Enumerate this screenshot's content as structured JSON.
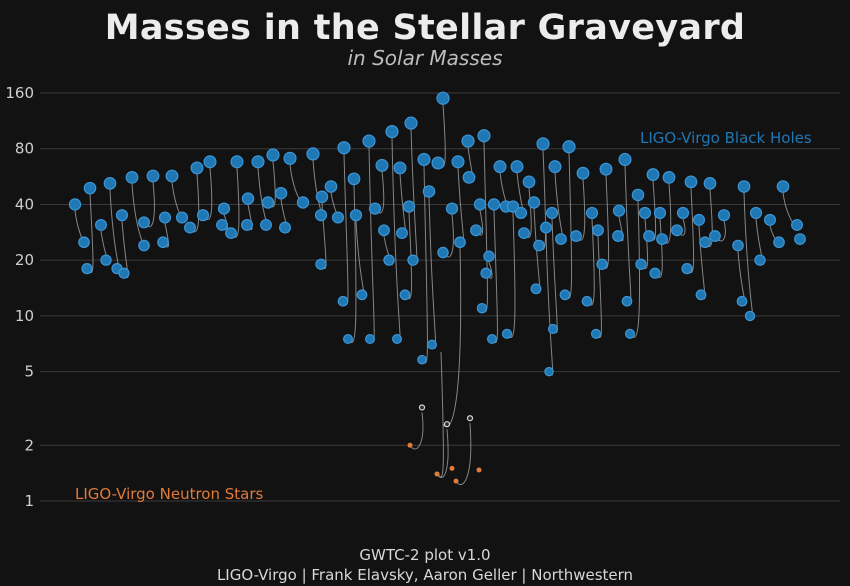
{
  "title": "Masses in the Stellar Graveyard",
  "subtitle": "in Solar Masses",
  "footer": {
    "line1": "GWTC-2 plot v1.0",
    "line2": "LIGO-Virgo | Frank Elavsky, Aaron Geller | Northwestern"
  },
  "colors": {
    "background": "#121212",
    "black_hole": "#1f77b4",
    "neutron_star": "#e07b39",
    "uncertain": "#d9d9d9",
    "merger_line": "#9a9a9a"
  },
  "chart_data": {
    "type": "scatter",
    "title": "Masses in the Stellar Graveyard",
    "subtitle": "in Solar Masses",
    "yscale": "log",
    "ylim": [
      1,
      170
    ],
    "yticks": [
      1,
      2,
      5,
      10,
      20,
      40,
      80,
      160
    ],
    "grid": true,
    "series": [
      {
        "name": "LIGO-Virgo Black Holes",
        "color": "#1f77b4"
      },
      {
        "name": "LIGO-Virgo Neutron Stars",
        "color": "#e07b39"
      }
    ],
    "mergers": [
      {
        "x": 1,
        "m1": 31,
        "m2": 25,
        "final": 53,
        "type": "BH"
      },
      {
        "x": 2,
        "m1": 35,
        "m2": 30,
        "final": 62,
        "type": "BH"
      },
      {
        "x": 3,
        "m1": 14,
        "m2": 8,
        "final": 21,
        "type": "BH"
      },
      {
        "x": 4,
        "m1": 23,
        "m2": 14,
        "final": 36,
        "type": "BH"
      },
      {
        "x": 5,
        "m1": 36,
        "m2": 24,
        "final": 57,
        "type": "BH"
      },
      {
        "x": 6,
        "m1": 29,
        "m2": 21,
        "final": 48,
        "type": "BH"
      },
      {
        "x": 7,
        "m1": 40,
        "m2": 30,
        "final": 68,
        "type": "BH"
      },
      {
        "x": 8,
        "m1": 35,
        "m2": 25,
        "final": 57,
        "type": "BH"
      },
      {
        "x": 9,
        "m1": 42,
        "m2": 31,
        "final": 71,
        "type": "BH"
      },
      {
        "x": 10,
        "m1": 30,
        "m2": 24,
        "final": 52,
        "type": "BH"
      },
      {
        "x": 11,
        "m1": 44,
        "m2": 33,
        "final": 75,
        "type": "BH"
      },
      {
        "x": 12,
        "m1": 39,
        "m2": 28,
        "final": 65,
        "type": "BH"
      },
      {
        "x": 13,
        "m1": 35,
        "m2": 27,
        "final": 59,
        "type": "BH"
      },
      {
        "x": 14,
        "m1": 51,
        "m2": 35,
        "final": 80,
        "type": "BH"
      },
      {
        "x": 15,
        "m1": 41,
        "m2": 32,
        "final": 72,
        "type": "BH"
      },
      {
        "x": 16,
        "m1": 50,
        "m2": 33,
        "final": 79,
        "type": "BH"
      },
      {
        "x": 17,
        "m1": 63,
        "m2": 41,
        "final": 98,
        "type": "BH"
      },
      {
        "x": 18,
        "m1": 13,
        "m2": 8,
        "final": 20,
        "type": "BH"
      },
      {
        "x": 19,
        "m1": 44,
        "m2": 30,
        "final": 72,
        "type": "BH"
      },
      {
        "x": 20,
        "m1": 14,
        "m2": 8,
        "final": 21,
        "type": "BH"
      },
      {
        "x": 21,
        "m1": 36,
        "m2": 29,
        "final": 62,
        "type": "BH"
      },
      {
        "x": 22,
        "m1": 51,
        "m2": 29,
        "final": 76,
        "type": "BH"
      },
      {
        "x": 23,
        "m1": 5.8,
        "m2": 4.2,
        "final": 9.5,
        "type": "BH"
      },
      {
        "x": 24,
        "m1": 2.9,
        "m2": 1.3,
        "final": 4.1,
        "type": "mixed"
      },
      {
        "x": 25,
        "m1": 66,
        "m2": 37,
        "final": 99,
        "type": "BH"
      },
      {
        "x": 26,
        "m1": 23,
        "m2": 2.6,
        "final": 25,
        "type": "mixed"
      },
      {
        "x": 27,
        "m1": 1.5,
        "m2": 1.3,
        "final": 2.7,
        "type": "NS"
      },
      {
        "x": 28,
        "m1": 35,
        "m2": 24,
        "final": 56,
        "type": "BH"
      },
      {
        "x": 29,
        "m1": 88,
        "m2": 66,
        "final": 150,
        "type": "BH"
      },
      {
        "x": 30,
        "m1": 39,
        "m2": 28,
        "final": 65,
        "type": "BH"
      },
      {
        "x": 31,
        "m1": 12,
        "m2": 8,
        "final": 19,
        "type": "BH"
      },
      {
        "x": 32,
        "m1": 42,
        "m2": 33,
        "final": 71,
        "type": "BH"
      },
      {
        "x": 33,
        "m1": 56,
        "m2": 40,
        "final": 93,
        "type": "BH"
      },
      {
        "x": 34,
        "m1": 37,
        "m2": 22,
        "final": 58,
        "type": "BH"
      },
      {
        "x": 35,
        "m1": 13,
        "m2": 5,
        "final": 18,
        "type": "BH"
      },
      {
        "x": 36,
        "m1": 38,
        "m2": 30,
        "final": 65,
        "type": "BH"
      },
      {
        "x": 37,
        "m1": 40,
        "m2": 23,
        "final": 61,
        "type": "BH"
      },
      {
        "x": 38,
        "m1": 54,
        "m2": 35,
        "final": 85,
        "type": "BH"
      },
      {
        "x": 39,
        "m1": 35,
        "m2": 25,
        "final": 56,
        "type": "BH"
      },
      {
        "x": 40,
        "m1": 13,
        "m2": 5,
        "final": 18,
        "type": "BH"
      },
      {
        "x": 41,
        "m1": 44,
        "m2": 24,
        "final": 66,
        "type": "BH"
      },
      {
        "x": 42,
        "m1": 36,
        "m2": 30,
        "final": 63,
        "type": "BH"
      },
      {
        "x": 43,
        "m1": 64,
        "m2": 38,
        "final": 96,
        "type": "BH"
      },
      {
        "x": 44,
        "m1": 24,
        "m2": 18,
        "final": 40,
        "type": "BH"
      },
      {
        "x": 45,
        "m1": 21,
        "m2": 10,
        "final": 30,
        "type": "BH"
      },
      {
        "x": 46,
        "m1": 37,
        "m2": 30,
        "final": 64,
        "type": "BH"
      },
      {
        "x": 47,
        "m1": 33,
        "m2": 20,
        "final": 51,
        "type": "BH"
      },
      {
        "x": 48,
        "m1": 38,
        "m2": 29,
        "final": 63,
        "type": "BH"
      },
      {
        "x": 49,
        "m1": 12,
        "m2": 10,
        "final": 20,
        "type": "BH"
      },
      {
        "x": 50,
        "m1": 31,
        "m2": 23,
        "final": 51,
        "type": "BH"
      },
      {
        "x": 51,
        "m1": 33,
        "m2": 23,
        "final": 53,
        "type": "BH"
      },
      {
        "x": 52,
        "m1": 35,
        "m2": 24,
        "final": 56,
        "type": "BH"
      },
      {
        "x": 53,
        "m1": 27,
        "m2": 19,
        "final": 44,
        "type": "BH"
      },
      {
        "x": 54,
        "m1": 31,
        "m2": 25,
        "final": 53,
        "type": "BH"
      },
      {
        "x": 55,
        "m1": 35,
        "m2": 23,
        "final": 56,
        "type": "BH"
      },
      {
        "x": 56,
        "m1": 30,
        "m2": 13,
        "final": 41,
        "type": "BH"
      },
      {
        "x": 57,
        "m1": 24,
        "m2": 16,
        "final": 39,
        "type": "BH"
      },
      {
        "x": 58,
        "m1": 34,
        "m2": 11,
        "final": 43,
        "type": "BH"
      },
      {
        "x": 59,
        "m1": 29,
        "m2": 10,
        "final": 38,
        "type": "BH"
      },
      {
        "x": 60,
        "m1": 35,
        "m2": 20,
        "final": 52,
        "type": "BH"
      },
      {
        "x": 61,
        "m1": 28,
        "m2": 24,
        "final": 49,
        "type": "BH"
      }
    ],
    "bh_positions": [
      [
        75,
        40
      ],
      [
        84,
        25
      ],
      [
        87,
        18
      ],
      [
        90,
        49
      ],
      [
        101,
        31
      ],
      [
        106,
        20
      ],
      [
        110,
        52
      ],
      [
        117,
        18
      ],
      [
        122,
        35
      ],
      [
        124,
        17
      ],
      [
        132,
        56
      ],
      [
        144,
        24
      ],
      [
        144,
        32
      ],
      [
        153,
        57
      ],
      [
        163,
        25
      ],
      [
        165,
        34
      ],
      [
        172,
        57
      ],
      [
        182,
        34
      ],
      [
        190,
        30
      ],
      [
        197,
        63
      ],
      [
        203,
        35
      ],
      [
        210,
        68
      ],
      [
        222,
        31
      ],
      [
        224,
        38
      ],
      [
        231,
        28
      ],
      [
        237,
        68
      ],
      [
        247,
        31
      ],
      [
        248,
        43
      ],
      [
        258,
        68
      ],
      [
        266,
        31
      ],
      [
        268,
        41
      ],
      [
        273,
        74
      ],
      [
        281,
        46
      ],
      [
        285,
        30
      ],
      [
        290,
        71
      ],
      [
        303,
        41
      ],
      [
        313,
        75
      ],
      [
        321,
        35
      ],
      [
        322,
        44
      ],
      [
        321,
        19
      ],
      [
        331,
        50
      ],
      [
        338,
        34
      ],
      [
        343,
        12
      ],
      [
        344,
        81
      ],
      [
        348,
        7.5
      ],
      [
        354,
        55
      ],
      [
        356,
        35
      ],
      [
        362,
        13
      ],
      [
        369,
        88
      ],
      [
        370,
        7.5
      ],
      [
        375,
        38
      ],
      [
        382,
        65
      ],
      [
        384,
        29
      ],
      [
        389,
        20
      ],
      [
        392,
        99
      ],
      [
        397,
        7.5
      ],
      [
        400,
        63
      ],
      [
        402,
        28
      ],
      [
        405,
        13
      ],
      [
        409,
        39
      ],
      [
        411,
        110
      ],
      [
        413,
        20
      ],
      [
        422,
        5.8
      ],
      [
        424,
        70
      ],
      [
        429,
        47
      ],
      [
        432,
        7.0
      ],
      [
        438,
        67
      ],
      [
        443,
        150
      ],
      [
        443,
        22
      ],
      [
        452,
        38
      ],
      [
        458,
        68
      ],
      [
        460,
        25
      ],
      [
        468,
        88
      ],
      [
        469,
        56
      ],
      [
        476,
        29
      ],
      [
        480,
        40
      ],
      [
        482,
        11
      ],
      [
        484,
        94
      ],
      [
        486,
        17
      ],
      [
        489,
        21
      ],
      [
        492,
        7.5
      ],
      [
        494,
        40
      ],
      [
        500,
        64
      ],
      [
        506,
        39
      ],
      [
        507,
        8.0
      ],
      [
        513,
        39
      ],
      [
        517,
        64
      ],
      [
        521,
        36
      ],
      [
        524,
        28
      ],
      [
        529,
        53
      ],
      [
        534,
        41
      ],
      [
        536,
        14
      ],
      [
        539,
        24
      ],
      [
        543,
        85
      ],
      [
        546,
        30
      ],
      [
        549,
        5.0
      ],
      [
        552,
        36
      ],
      [
        553,
        8.5
      ],
      [
        555,
        64
      ],
      [
        561,
        26
      ],
      [
        565,
        13
      ],
      [
        569,
        82
      ],
      [
        576,
        27
      ],
      [
        583,
        59
      ],
      [
        587,
        12
      ],
      [
        592,
        36
      ],
      [
        596,
        8.0
      ],
      [
        598,
        29
      ],
      [
        602,
        19
      ],
      [
        606,
        62
      ],
      [
        618,
        27
      ],
      [
        619,
        37
      ],
      [
        625,
        70
      ],
      [
        627,
        12
      ],
      [
        630,
        8.0
      ],
      [
        638,
        45
      ],
      [
        641,
        19
      ],
      [
        645,
        36
      ],
      [
        649,
        27
      ],
      [
        653,
        58
      ],
      [
        655,
        17
      ],
      [
        660,
        36
      ],
      [
        662,
        26
      ],
      [
        669,
        56
      ],
      [
        677,
        29
      ],
      [
        683,
        36
      ],
      [
        687,
        18
      ],
      [
        691,
        53
      ],
      [
        699,
        33
      ],
      [
        701,
        13
      ],
      [
        705,
        25
      ],
      [
        710,
        52
      ],
      [
        715,
        27
      ],
      [
        724,
        35
      ],
      [
        738,
        24
      ],
      [
        742,
        12
      ],
      [
        744,
        50
      ],
      [
        750,
        10
      ],
      [
        756,
        36
      ],
      [
        760,
        20
      ],
      [
        770,
        33
      ],
      [
        779,
        25
      ],
      [
        783,
        50
      ],
      [
        797,
        31
      ],
      [
        800,
        26
      ]
    ],
    "ns_positions": [
      [
        410,
        2.0
      ],
      [
        437,
        1.4
      ],
      [
        452,
        1.5
      ],
      [
        456,
        1.28
      ],
      [
        479,
        1.47
      ]
    ],
    "uncertain_positions": [
      [
        422,
        3.2
      ],
      [
        447,
        2.6
      ],
      [
        470,
        2.8
      ]
    ]
  }
}
